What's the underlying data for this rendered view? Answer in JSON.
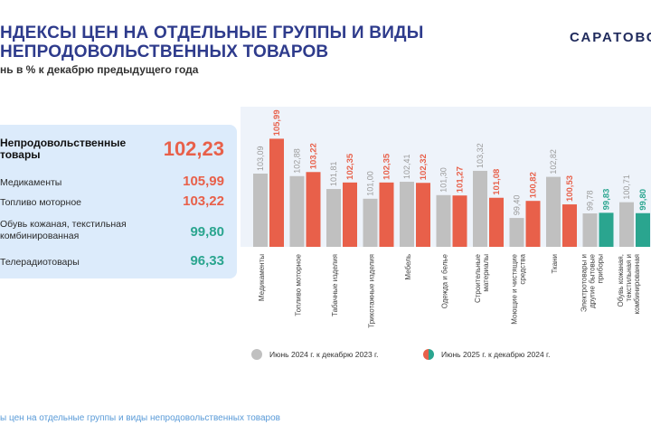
{
  "header": {
    "title_line1": "НДЕКСЫ ЦЕН НА ОТДЕЛЬНЫЕ ГРУППЫ И ВИДЫ",
    "title_line2": "НЕПРОДОВОЛЬСТВЕННЫХ ТОВАРОВ",
    "subtitle": "нь в % к декабрю предыдущего года",
    "brand": "САРАТОВС"
  },
  "summary": {
    "main": {
      "label_line1": "Непродовольственные",
      "label_line2": "товары",
      "value": "102,23"
    },
    "items": [
      {
        "label_line1": "Медикаменты",
        "label_line2": "",
        "value": "105,99",
        "color": "#e8604a"
      },
      {
        "label_line1": "Топливо моторное",
        "label_line2": "",
        "value": "103,22",
        "color": "#e8604a"
      },
      {
        "label_line1": "Обувь кожаная, текстильная",
        "label_line2": "комбинированная",
        "value": "99,80",
        "color": "#2aa58f"
      },
      {
        "label_line1": "Телерадиотовары",
        "label_line2": "",
        "value": "96,33",
        "color": "#2aa58f"
      }
    ]
  },
  "chart_data": {
    "type": "bar",
    "categories": [
      [
        "Медикаменты"
      ],
      [
        "Топливо моторное"
      ],
      [
        "Табачные изделия"
      ],
      [
        "Трикотажные изделия"
      ],
      [
        "Мебель"
      ],
      [
        "Одежда и белье"
      ],
      [
        "Строительные",
        "материалы"
      ],
      [
        "Моющие и чистящие",
        "средства"
      ],
      [
        "Ткани"
      ],
      [
        "Электротовары и",
        "другие бытовые",
        "приборы"
      ],
      [
        "Обувь кожаная,",
        "текстильная и",
        "комбинированная"
      ]
    ],
    "series": [
      {
        "name": "Июнь  2024 г. к  декабрю 2023 г.",
        "values": [
          103.09,
          102.88,
          101.81,
          101.0,
          102.41,
          101.3,
          103.32,
          99.4,
          102.82,
          99.78,
          100.71
        ],
        "labels": [
          "103,09",
          "102,88",
          "101,81",
          "101,00",
          "102,41",
          "101,30",
          "103,32",
          "99,40",
          "102,82",
          "99,78",
          "100,71"
        ],
        "color": "#c0c0c0"
      },
      {
        "name": "Июнь  2025 г. к  декабрю 2024 г.",
        "values": [
          105.99,
          103.22,
          102.35,
          102.35,
          102.32,
          101.27,
          101.08,
          100.82,
          100.53,
          99.83,
          99.8
        ],
        "labels": [
          "105,99",
          "103,22",
          "102,35",
          "102,35",
          "102,32",
          "101,27",
          "101,08",
          "100,82",
          "100,53",
          "99,83",
          "99,80"
        ],
        "colors": [
          "#e8604a",
          "#e8604a",
          "#e8604a",
          "#e8604a",
          "#e8604a",
          "#e8604a",
          "#e8604a",
          "#e8604a",
          "#e8604a",
          "#2aa58f",
          "#2aa58f"
        ]
      }
    ],
    "legend_position": "bottom",
    "grid": false
  },
  "colors": {
    "orange": "#e8604a",
    "teal": "#2aa58f",
    "gray": "#c0c0c0",
    "title": "#2e3b8c",
    "panel": "#dcebfb"
  },
  "footer": {
    "text": "ы цен на отдельные группы и виды непродовольственных товаров"
  }
}
